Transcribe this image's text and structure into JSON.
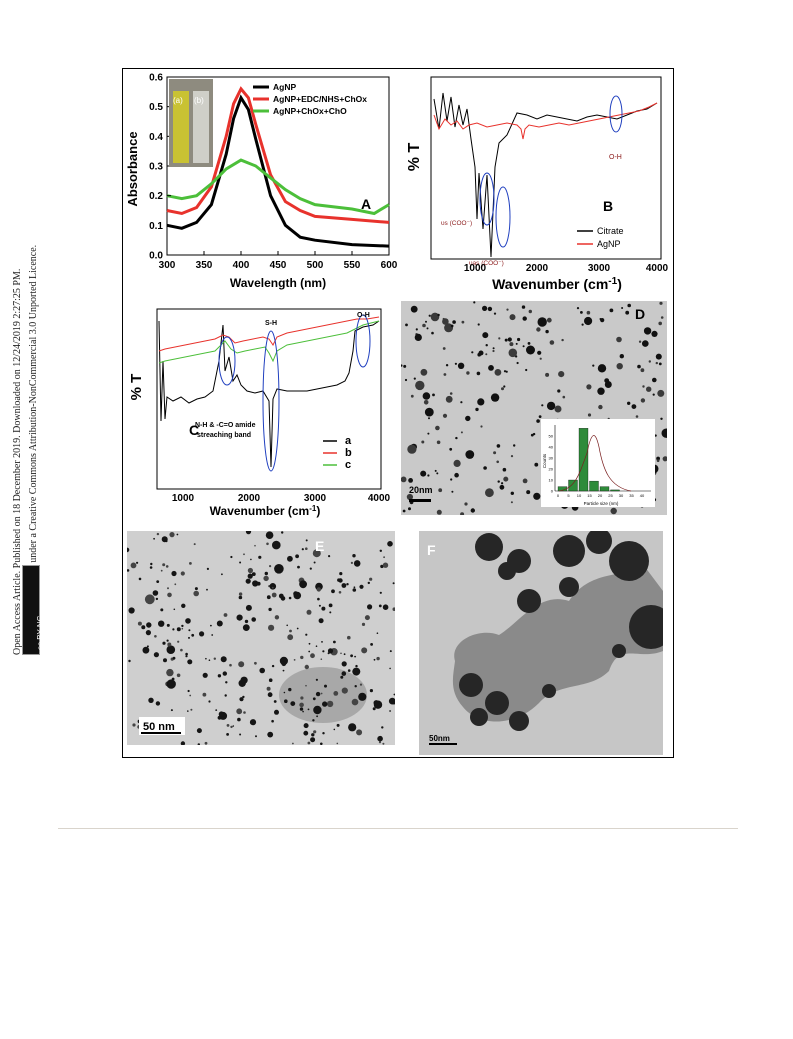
{
  "sidebar": {
    "line1": "Open Access Article. Published on 18 December 2019. Downloaded on 12/24/2019 2:27:25 PM.",
    "line2": "This article is licensed under a Creative Commons Attribution-NonCommercial 3.0 Unported Licence.",
    "badge": "cc BY-NC"
  },
  "panels": {
    "A": {
      "letter": "A",
      "ylabel": "Absorbance",
      "xlabel": "Wavelength (nm)",
      "yticks": [
        "0.0",
        "0.1",
        "0.2",
        "0.3",
        "0.4",
        "0.5",
        "0.6"
      ],
      "xticks": [
        "300",
        "350",
        "400",
        "450",
        "500",
        "550",
        "600"
      ],
      "legend": [
        "AgNP",
        "AgNP+EDC/NHS+ChOx",
        "AgNP+ChOx+ChO"
      ],
      "inset_labels": [
        "(a)",
        "(b)"
      ]
    },
    "B": {
      "letter": "B",
      "ylabel": "% T",
      "xlabel": "Wavenumber (cm",
      "xlabel_sup": "-1",
      "xlabel_end": ")",
      "xticks": [
        "1000",
        "2000",
        "3000",
        "4000"
      ],
      "legend": [
        "Citrate",
        "AgNP"
      ],
      "ann_oh": "O-H",
      "ann_vs": "υs (COO⁻)",
      "ann_vas": "υas (COO⁻)"
    },
    "C": {
      "letter": "C",
      "ylabel": "% T",
      "xlabel": "Wavenumber (cm",
      "xlabel_sup": "-1",
      "xlabel_end": ")",
      "xticks": [
        "1000",
        "2000",
        "3000",
        "4000"
      ],
      "legend": [
        "a",
        "b",
        "c"
      ],
      "ann_sh": "S-H",
      "ann_oh": "O-H",
      "ann_amide1": "N-H & -C=O amide",
      "ann_amide2": "streaching band"
    },
    "D": {
      "letter": "D",
      "scale": "20nm",
      "hist_ylabel": "Counts",
      "hist_xlabel": "Particle size (nm)",
      "hist_xticks": [
        "0",
        "5",
        "10",
        "15",
        "20",
        "25",
        "30",
        "35",
        "40"
      ],
      "hist_yticks": [
        "0",
        "10",
        "20",
        "30",
        "40",
        "50"
      ]
    },
    "E": {
      "letter": "E",
      "scale": "50 nm"
    },
    "F": {
      "letter": "F",
      "scale": "50nm"
    }
  },
  "colors": {
    "black": "#000000",
    "red": "#e8322c",
    "green": "#4cbf3a",
    "annotation": "#8b1a1a",
    "circle": "#1f3fbf"
  },
  "chart_data": [
    {
      "type": "line",
      "xlabel": "Wavelength (nm)",
      "ylabel": "Absorbance",
      "xlim": [
        300,
        600
      ],
      "ylim": [
        0.0,
        0.6
      ],
      "series": [
        {
          "name": "AgNP",
          "x": [
            300,
            320,
            340,
            360,
            380,
            390,
            400,
            410,
            420,
            440,
            460,
            480,
            500,
            550,
            600
          ],
          "y": [
            0.1,
            0.09,
            0.11,
            0.17,
            0.34,
            0.46,
            0.53,
            0.49,
            0.39,
            0.2,
            0.1,
            0.06,
            0.05,
            0.035,
            0.03
          ]
        },
        {
          "name": "AgNP+EDC/NHS+ChOx",
          "x": [
            300,
            320,
            340,
            360,
            380,
            390,
            400,
            410,
            420,
            440,
            460,
            480,
            500,
            550,
            600
          ],
          "y": [
            0.15,
            0.14,
            0.16,
            0.23,
            0.4,
            0.51,
            0.56,
            0.53,
            0.44,
            0.27,
            0.18,
            0.15,
            0.13,
            0.12,
            0.11
          ]
        },
        {
          "name": "AgNP+ChOx+ChO",
          "x": [
            300,
            320,
            340,
            360,
            380,
            400,
            420,
            440,
            460,
            480,
            500,
            550,
            580,
            600
          ],
          "y": [
            0.2,
            0.19,
            0.2,
            0.24,
            0.29,
            0.32,
            0.3,
            0.26,
            0.22,
            0.19,
            0.17,
            0.155,
            0.14,
            0.17
          ]
        }
      ]
    }
  ]
}
